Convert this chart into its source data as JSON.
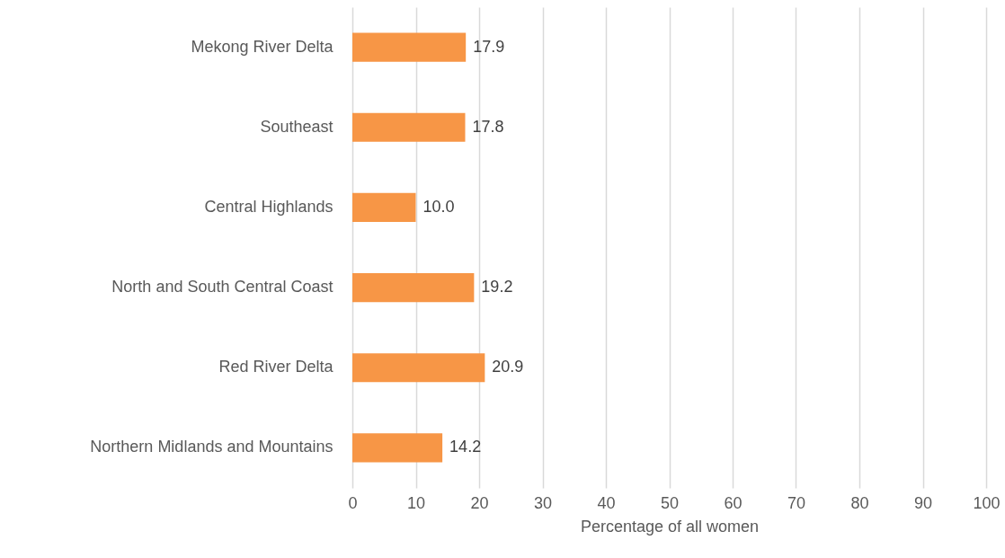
{
  "chart_data": {
    "type": "bar",
    "orientation": "horizontal",
    "xlabel": "Percentage of all women",
    "categories": [
      "Mekong River Delta",
      "Southeast",
      "Central Highlands",
      "North and South Central Coast",
      "Red River Delta",
      "Northern Midlands and Mountains"
    ],
    "values": [
      17.9,
      17.8,
      10.0,
      19.2,
      20.9,
      14.2
    ],
    "value_labels": [
      "17.9",
      "17.8",
      "10.0",
      "19.2",
      "20.9",
      "14.2"
    ],
    "color": "#f79646",
    "xlim": [
      0,
      100
    ],
    "xticks": [
      0,
      10,
      20,
      30,
      40,
      50,
      60,
      70,
      80,
      90,
      100
    ],
    "grid": "x"
  }
}
